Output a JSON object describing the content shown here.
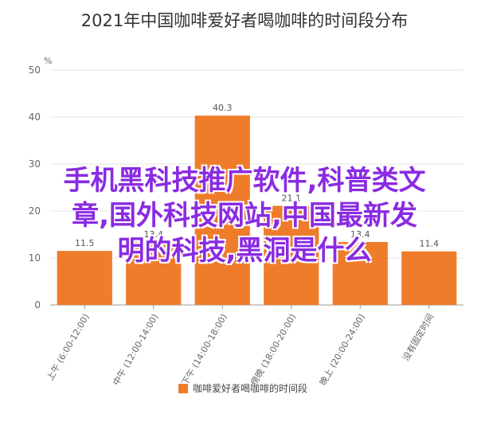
{
  "colors": {
    "bar": "#ef7c2b",
    "grid": "#e6e6e6",
    "axis": "#999999",
    "overlay_text": "#8a2be2"
  },
  "chart_data": {
    "type": "bar",
    "title": "2021年中国咖啡爱好者喝咖啡的时间段分布",
    "unit": "%",
    "categories": [
      "上午 (6:00-12:00)",
      "中午 (12:00-14:00)",
      "下午 (14:00-18:00)",
      "傍晚 (18:00-20:00)",
      "晚上 (20:00-24:00)",
      "没有固定时间"
    ],
    "series": [
      {
        "name": "咖啡爱好者喝咖啡的时间段",
        "values": [
          11.5,
          13.4,
          40.3,
          21.1,
          13.4,
          11.4
        ]
      }
    ],
    "data_labels": [
      "11.5",
      "13.4",
      "40.3",
      "21.1",
      "13.4",
      "11.4"
    ],
    "ylim": [
      0,
      50
    ],
    "yticks": [
      0,
      10,
      20,
      30,
      40,
      50
    ],
    "grid": true,
    "legend_position": "bottom"
  },
  "overlay": {
    "lines": [
      "手机黑科技推广软件,科普类文",
      "章,国外科技网站,中国最新发",
      "明的科技,黑洞是什么"
    ]
  }
}
